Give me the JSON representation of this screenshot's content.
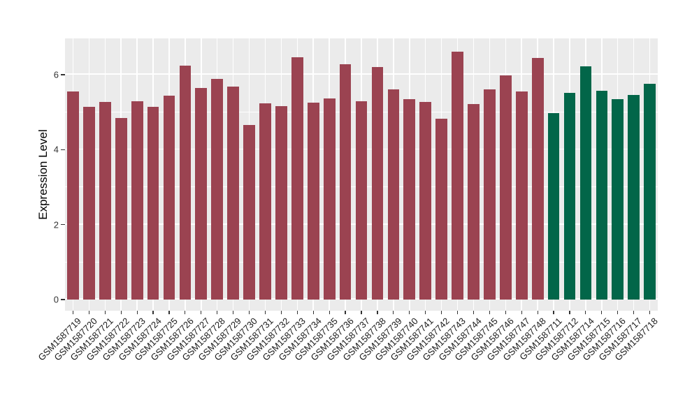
{
  "chart_data": {
    "type": "bar",
    "title": "",
    "xlabel": "",
    "ylabel": "Expression Level",
    "ylim": [
      0,
      6.97
    ],
    "yticks_major": [
      0,
      2,
      4,
      6
    ],
    "yticks_minor": [
      1,
      3,
      5
    ],
    "ytick_labels": [
      "0",
      "2",
      "4",
      "6"
    ],
    "grid": "on",
    "legend_position": "none",
    "panel_background": "#EBEBEB",
    "gridline_color": "#FFFFFF",
    "group_colors": {
      "maroon": "#9B4351",
      "green": "#026649"
    },
    "categories": [
      "GSM1587719",
      "GSM1587720",
      "GSM1587721",
      "GSM1587722",
      "GSM1587723",
      "GSM1587724",
      "GSM1587725",
      "GSM1587726",
      "GSM1587727",
      "GSM1587728",
      "GSM1587729",
      "GSM1587730",
      "GSM1587731",
      "GSM1587732",
      "GSM1587733",
      "GSM1587734",
      "GSM1587735",
      "GSM1587736",
      "GSM1587737",
      "GSM1587738",
      "GSM1587739",
      "GSM1587740",
      "GSM1587741",
      "GSM1587742",
      "GSM1587743",
      "GSM1587744",
      "GSM1587745",
      "GSM1587746",
      "GSM1587747",
      "GSM1587748",
      "GSM1587711",
      "GSM1587712",
      "GSM1587714",
      "GSM1587715",
      "GSM1587716",
      "GSM1587717",
      "GSM1587718"
    ],
    "values": [
      5.55,
      5.15,
      5.28,
      4.85,
      5.3,
      5.15,
      5.45,
      6.25,
      5.65,
      5.88,
      5.69,
      4.65,
      5.23,
      5.17,
      6.47,
      5.25,
      5.37,
      6.28,
      5.3,
      6.21,
      5.6,
      5.35,
      5.27,
      4.82,
      6.61,
      5.21,
      5.6,
      5.98,
      5.55,
      6.44,
      4.97,
      5.52,
      6.22,
      5.57,
      5.34,
      5.46,
      5.76
    ],
    "bar_groups": [
      "maroon",
      "maroon",
      "maroon",
      "maroon",
      "maroon",
      "maroon",
      "maroon",
      "maroon",
      "maroon",
      "maroon",
      "maroon",
      "maroon",
      "maroon",
      "maroon",
      "maroon",
      "maroon",
      "maroon",
      "maroon",
      "maroon",
      "maroon",
      "maroon",
      "maroon",
      "maroon",
      "maroon",
      "maroon",
      "maroon",
      "maroon",
      "maroon",
      "maroon",
      "maroon",
      "green",
      "green",
      "green",
      "green",
      "green",
      "green",
      "green"
    ]
  }
}
